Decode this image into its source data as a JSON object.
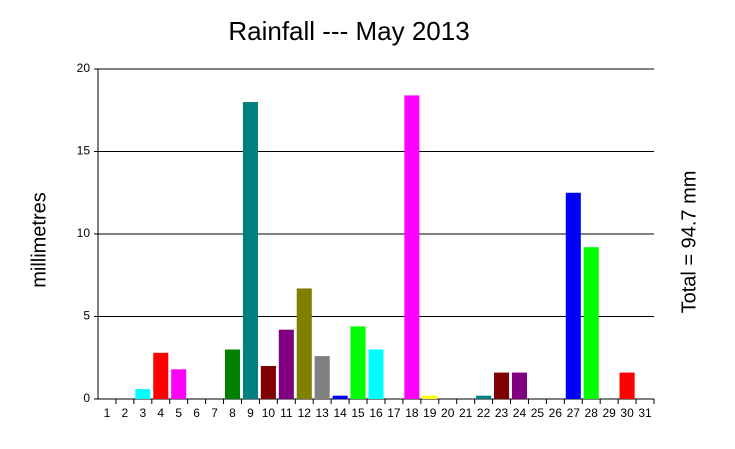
{
  "chart_data": {
    "type": "bar",
    "title": "Rainfall --- May 2013",
    "y_label": "millimetres",
    "annotation": "Total = 94.7 mm",
    "categories": [
      "1",
      "2",
      "3",
      "4",
      "5",
      "6",
      "7",
      "8",
      "9",
      "10",
      "11",
      "12",
      "13",
      "14",
      "15",
      "16",
      "17",
      "18",
      "19",
      "20",
      "21",
      "22",
      "23",
      "24",
      "25",
      "26",
      "27",
      "28",
      "29",
      "30",
      "31"
    ],
    "values": [
      0,
      0,
      0.6,
      2.8,
      1.8,
      0,
      0,
      3.0,
      18.0,
      2.0,
      4.2,
      6.7,
      2.6,
      0.2,
      4.4,
      3.0,
      0,
      18.4,
      0.2,
      0,
      0,
      0.2,
      1.6,
      1.6,
      0,
      0,
      12.5,
      9.2,
      0,
      1.6,
      0
    ],
    "colors": [
      "#ff0000",
      "#00ffff",
      "#00ffff",
      "#ff0000",
      "#ff00ff",
      "#008000",
      "#008080",
      "#008000",
      "#008080",
      "#800000",
      "#800080",
      "#808000",
      "#808080",
      "#0000ff",
      "#00ff00",
      "#00ffff",
      "#ff0000",
      "#ff00ff",
      "#ffff00",
      "#008000",
      "#008080",
      "#008080",
      "#800000",
      "#800080",
      "#808000",
      "#808080",
      "#0000ff",
      "#00ff00",
      "#00ffff",
      "#ff0000",
      "#ff00ff"
    ],
    "ylim": [
      0,
      20
    ],
    "yticks": [
      0,
      5,
      10,
      15,
      20
    ],
    "grid": true
  }
}
